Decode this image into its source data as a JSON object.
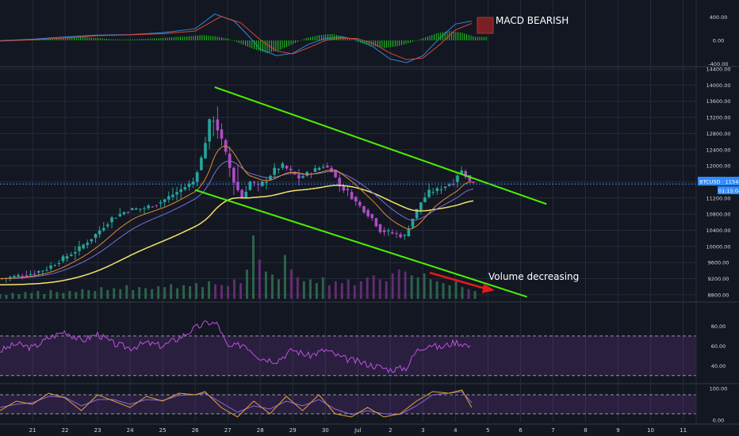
{
  "chart_data": {
    "type": "candlestick",
    "colors": {
      "background": "#131722",
      "grid": "#262b3b",
      "up": "#26a69a",
      "down": "#b04bc7",
      "channel": "#4cf000",
      "ema_fast": "#e08a34",
      "ema_mid": "#7b6fd6",
      "ma_slow": "#f3e46a",
      "price_line": "#2e8cff",
      "arrow": "#e31b1b",
      "macd_hist": "#27e020",
      "macd_line": "#2f8ad9",
      "signal_line": "#d9473a",
      "rsi": "#c04fe0",
      "stoch_k": "#e6a43a",
      "stoch_d": "#8b6ad8",
      "axis_text": "#d1d4dc",
      "bearish_box": "#7b1f24"
    },
    "x_ticks": [
      "21",
      "22",
      "23",
      "24",
      "25",
      "26",
      "27",
      "28",
      "29",
      "30",
      "Jul",
      "2",
      "3",
      "4",
      "5",
      "6",
      "7",
      "8",
      "9",
      "10",
      "11"
    ],
    "x_tick_days": [
      21,
      22,
      23,
      24,
      25,
      26,
      27,
      28,
      29,
      30,
      31,
      32,
      33,
      34,
      35,
      36,
      37,
      38,
      39,
      40,
      41
    ],
    "x_range": [
      20,
      41.4
    ],
    "price_pane": {
      "y_ticks": [
        "14400.00",
        "14000.00",
        "13600.00",
        "13200.00",
        "12800.00",
        "12400.00",
        "12000.00",
        "11600.00",
        "11200.00",
        "10800.00",
        "10400.00",
        "10000.00",
        "9600.00",
        "9200.00",
        "8800.00"
      ],
      "y_range": [
        8700,
        14400
      ],
      "last_price": 11546.54,
      "symbol_tag": "BTCUSD · 11546.54",
      "countdown_tag": "01:15:04",
      "close_path": [
        [
          20.0,
          9200
        ],
        [
          20.5,
          9250
        ],
        [
          21.0,
          9320
        ],
        [
          21.5,
          9450
        ],
        [
          22.0,
          9700
        ],
        [
          22.5,
          9950
        ],
        [
          23.0,
          10300
        ],
        [
          23.5,
          10700
        ],
        [
          24.0,
          10900
        ],
        [
          24.5,
          10950
        ],
        [
          25.0,
          11100
        ],
        [
          25.5,
          11350
        ],
        [
          26.0,
          11600
        ],
        [
          26.3,
          12300
        ],
        [
          26.55,
          13300
        ],
        [
          26.7,
          13000
        ],
        [
          26.85,
          12700
        ],
        [
          27.0,
          12300
        ],
        [
          27.25,
          11600
        ],
        [
          27.5,
          11200
        ],
        [
          27.75,
          11600
        ],
        [
          28.0,
          11500
        ],
        [
          28.25,
          11650
        ],
        [
          28.5,
          11900
        ],
        [
          28.75,
          12000
        ],
        [
          29.0,
          11850
        ],
        [
          29.25,
          11700
        ],
        [
          29.5,
          11800
        ],
        [
          29.75,
          11900
        ],
        [
          30.0,
          12000
        ],
        [
          30.25,
          11900
        ],
        [
          30.5,
          11500
        ],
        [
          30.75,
          11350
        ],
        [
          31.0,
          11100
        ],
        [
          31.25,
          10900
        ],
        [
          31.5,
          10700
        ],
        [
          31.75,
          10400
        ],
        [
          32.0,
          10350
        ],
        [
          32.25,
          10300
        ],
        [
          32.5,
          10250
        ],
        [
          32.75,
          10700
        ],
        [
          33.0,
          11100
        ],
        [
          33.25,
          11350
        ],
        [
          33.5,
          11400
        ],
        [
          33.75,
          11500
        ],
        [
          34.0,
          11600
        ],
        [
          34.2,
          11900
        ],
        [
          34.35,
          11800
        ],
        [
          34.5,
          11600
        ]
      ],
      "channel_upper": [
        [
          26.6,
          13950
        ],
        [
          36.8,
          11050
        ]
      ],
      "channel_lower": [
        [
          26.0,
          11400
        ],
        [
          36.2,
          8750
        ]
      ],
      "volume_bars": [
        5,
        4,
        6,
        5,
        7,
        6,
        8,
        5,
        9,
        7,
        6,
        8,
        7,
        10,
        9,
        8,
        12,
        9,
        11,
        10,
        14,
        9,
        12,
        11,
        10,
        13,
        12,
        15,
        11,
        14,
        13,
        16,
        12,
        18,
        15,
        14,
        13,
        20,
        16,
        30,
        65,
        40,
        28,
        25,
        20,
        45,
        30,
        22,
        18,
        20,
        16,
        22,
        14,
        18,
        16,
        20,
        14,
        18,
        22,
        24,
        20,
        18,
        26,
        30,
        28,
        24,
        22,
        26,
        20,
        18,
        16,
        14,
        18,
        12,
        10,
        8
      ],
      "annotation_volume": "Volume decreasing"
    },
    "macd_pane": {
      "y_ticks": [
        "400.00",
        "0.00",
        "-400.00"
      ],
      "y_range": [
        -420,
        500
      ],
      "label": "MACD BEARISH",
      "macd_path": [
        [
          20,
          -5
        ],
        [
          21,
          20
        ],
        [
          22,
          60
        ],
        [
          23,
          90
        ],
        [
          24,
          100
        ],
        [
          25,
          130
        ],
        [
          26,
          200
        ],
        [
          26.6,
          450
        ],
        [
          27.2,
          330
        ],
        [
          27.6,
          100
        ],
        [
          28,
          -150
        ],
        [
          28.5,
          -260
        ],
        [
          29,
          -220
        ],
        [
          29.5,
          -60
        ],
        [
          30,
          30
        ],
        [
          30.5,
          60
        ],
        [
          31,
          10
        ],
        [
          31.5,
          -120
        ],
        [
          32,
          -320
        ],
        [
          32.5,
          -380
        ],
        [
          33,
          -260
        ],
        [
          33.5,
          30
        ],
        [
          34,
          280
        ],
        [
          34.5,
          330
        ]
      ],
      "signal_path": [
        [
          20,
          -10
        ],
        [
          21,
          10
        ],
        [
          22,
          40
        ],
        [
          23,
          80
        ],
        [
          24,
          95
        ],
        [
          25,
          115
        ],
        [
          26,
          160
        ],
        [
          26.8,
          410
        ],
        [
          27.4,
          300
        ],
        [
          28,
          10
        ],
        [
          28.5,
          -180
        ],
        [
          29,
          -230
        ],
        [
          29.5,
          -120
        ],
        [
          30,
          0
        ],
        [
          30.5,
          40
        ],
        [
          31,
          30
        ],
        [
          31.5,
          -60
        ],
        [
          32,
          -220
        ],
        [
          32.5,
          -330
        ],
        [
          33,
          -300
        ],
        [
          33.5,
          -80
        ],
        [
          34,
          180
        ],
        [
          34.5,
          290
        ]
      ],
      "histogram": [
        [
          20.2,
          10
        ],
        [
          20.6,
          15
        ],
        [
          21.0,
          20
        ],
        [
          21.4,
          25
        ],
        [
          21.8,
          40
        ],
        [
          22.2,
          60
        ],
        [
          22.6,
          55
        ],
        [
          23.0,
          40
        ],
        [
          23.4,
          20
        ],
        [
          23.8,
          15
        ],
        [
          24.2,
          20
        ],
        [
          24.6,
          30
        ],
        [
          25.0,
          40
        ],
        [
          25.4,
          60
        ],
        [
          25.8,
          70
        ],
        [
          26.2,
          90
        ],
        [
          26.6,
          70
        ],
        [
          27.0,
          30
        ],
        [
          27.4,
          -60
        ],
        [
          27.8,
          -150
        ],
        [
          28.2,
          -220
        ],
        [
          28.6,
          -160
        ],
        [
          29.0,
          -60
        ],
        [
          29.4,
          40
        ],
        [
          29.8,
          90
        ],
        [
          30.2,
          110
        ],
        [
          30.6,
          60
        ],
        [
          31.0,
          -30
        ],
        [
          31.4,
          -90
        ],
        [
          31.8,
          -130
        ],
        [
          32.2,
          -100
        ],
        [
          32.6,
          -40
        ],
        [
          33.0,
          40
        ],
        [
          33.4,
          120
        ],
        [
          33.8,
          160
        ],
        [
          34.2,
          130
        ],
        [
          34.6,
          60
        ]
      ]
    },
    "rsi_pane": {
      "y_ticks": [
        "80.00",
        "60.00",
        "40.00"
      ],
      "y_range": [
        25,
        90
      ],
      "upper_band": 70,
      "lower_band": 30,
      "rsi_path": [
        [
          20,
          55
        ],
        [
          20.5,
          62
        ],
        [
          21,
          58
        ],
        [
          21.5,
          68
        ],
        [
          22,
          75
        ],
        [
          22.5,
          65
        ],
        [
          23,
          72
        ],
        [
          23.5,
          62
        ],
        [
          24,
          58
        ],
        [
          24.5,
          63
        ],
        [
          25,
          60
        ],
        [
          25.5,
          68
        ],
        [
          26,
          78
        ],
        [
          26.4,
          84
        ],
        [
          26.7,
          82
        ],
        [
          27.0,
          58
        ],
        [
          27.5,
          62
        ],
        [
          28,
          48
        ],
        [
          28.5,
          45
        ],
        [
          29,
          56
        ],
        [
          29.5,
          50
        ],
        [
          30,
          56
        ],
        [
          30.5,
          48
        ],
        [
          31,
          44
        ],
        [
          31.5,
          40
        ],
        [
          32,
          36
        ],
        [
          32.5,
          38
        ],
        [
          32.8,
          55
        ],
        [
          33.2,
          62
        ],
        [
          33.5,
          58
        ],
        [
          34,
          64
        ],
        [
          34.3,
          62
        ],
        [
          34.5,
          57
        ]
      ]
    },
    "stoch_pane": {
      "y_ticks": [
        "100.00",
        "0.00"
      ],
      "y_range": [
        -5,
        110
      ],
      "upper_band": 80,
      "lower_band": 20,
      "k_path": [
        [
          20,
          30
        ],
        [
          20.5,
          60
        ],
        [
          21,
          50
        ],
        [
          21.5,
          85
        ],
        [
          22,
          70
        ],
        [
          22.5,
          30
        ],
        [
          23,
          80
        ],
        [
          23.5,
          60
        ],
        [
          24,
          40
        ],
        [
          24.5,
          75
        ],
        [
          25,
          60
        ],
        [
          25.5,
          85
        ],
        [
          26,
          80
        ],
        [
          26.3,
          90
        ],
        [
          26.8,
          40
        ],
        [
          27.3,
          10
        ],
        [
          27.8,
          60
        ],
        [
          28.3,
          20
        ],
        [
          28.8,
          75
        ],
        [
          29.3,
          30
        ],
        [
          29.8,
          80
        ],
        [
          30.3,
          20
        ],
        [
          30.8,
          10
        ],
        [
          31.3,
          40
        ],
        [
          31.8,
          10
        ],
        [
          32.3,
          20
        ],
        [
          32.8,
          60
        ],
        [
          33.3,
          90
        ],
        [
          33.8,
          85
        ],
        [
          34.2,
          95
        ],
        [
          34.5,
          40
        ]
      ],
      "d_path": [
        [
          20,
          40
        ],
        [
          20.5,
          50
        ],
        [
          21,
          55
        ],
        [
          21.5,
          75
        ],
        [
          22,
          72
        ],
        [
          22.5,
          45
        ],
        [
          23,
          65
        ],
        [
          23.5,
          65
        ],
        [
          24,
          50
        ],
        [
          24.5,
          65
        ],
        [
          25,
          62
        ],
        [
          25.5,
          78
        ],
        [
          26,
          80
        ],
        [
          26.3,
          85
        ],
        [
          26.8,
          55
        ],
        [
          27.3,
          25
        ],
        [
          27.8,
          45
        ],
        [
          28.3,
          35
        ],
        [
          28.8,
          60
        ],
        [
          29.3,
          45
        ],
        [
          29.8,
          65
        ],
        [
          30.3,
          35
        ],
        [
          30.8,
          18
        ],
        [
          31.3,
          30
        ],
        [
          31.8,
          20
        ],
        [
          32.3,
          18
        ],
        [
          32.8,
          45
        ],
        [
          33.3,
          80
        ],
        [
          33.8,
          85
        ],
        [
          34.2,
          90
        ],
        [
          34.5,
          55
        ]
      ]
    }
  }
}
